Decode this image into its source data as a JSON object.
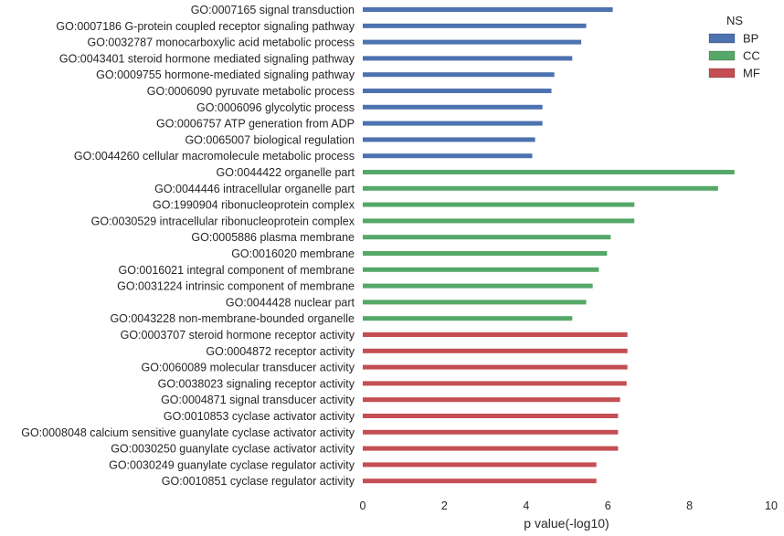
{
  "chart_data": {
    "type": "bar",
    "orientation": "horizontal",
    "xlabel": "p value(-log10)",
    "xlim": [
      0,
      10
    ],
    "xticks": [
      0,
      2,
      4,
      6,
      8,
      10
    ],
    "grid": false,
    "legend": {
      "title": "NS",
      "placement": "top-right",
      "entries": [
        {
          "name": "BP",
          "color": "#4c72b0"
        },
        {
          "name": "CC",
          "color": "#55a868"
        },
        {
          "name": "MF",
          "color": "#c44e52"
        }
      ]
    },
    "bars": [
      {
        "label": "GO:0007165 signal transduction",
        "value": 6.12,
        "group": "BP"
      },
      {
        "label": "GO:0007186 G-protein coupled receptor signaling pathway",
        "value": 5.47,
        "group": "BP"
      },
      {
        "label": "GO:0032787 monocarboxylic acid metabolic process",
        "value": 5.35,
        "group": "BP"
      },
      {
        "label": "GO:0043401 steroid hormone mediated signaling pathway",
        "value": 5.13,
        "group": "BP"
      },
      {
        "label": "GO:0009755 hormone-mediated signaling pathway",
        "value": 4.69,
        "group": "BP"
      },
      {
        "label": "GO:0006090 pyruvate metabolic process",
        "value": 4.62,
        "group": "BP"
      },
      {
        "label": "GO:0006096 glycolytic process",
        "value": 4.4,
        "group": "BP"
      },
      {
        "label": "GO:0006757 ATP generation from ADP",
        "value": 4.4,
        "group": "BP"
      },
      {
        "label": "GO:0065007 biological regulation",
        "value": 4.22,
        "group": "BP"
      },
      {
        "label": "GO:0044260 cellular macromolecule metabolic process",
        "value": 4.15,
        "group": "BP"
      },
      {
        "label": "GO:0044422 organelle part",
        "value": 9.1,
        "group": "CC"
      },
      {
        "label": "GO:0044446 intracellular organelle part",
        "value": 8.7,
        "group": "CC"
      },
      {
        "label": "GO:1990904 ribonucleoprotein complex",
        "value": 6.65,
        "group": "CC"
      },
      {
        "label": "GO:0030529 intracellular ribonucleoprotein complex",
        "value": 6.65,
        "group": "CC"
      },
      {
        "label": "GO:0005886 plasma membrane",
        "value": 6.07,
        "group": "CC"
      },
      {
        "label": "GO:0016020 membrane",
        "value": 5.98,
        "group": "CC"
      },
      {
        "label": "GO:0016021 integral component of membrane",
        "value": 5.78,
        "group": "CC"
      },
      {
        "label": "GO:0031224 intrinsic component of membrane",
        "value": 5.63,
        "group": "CC"
      },
      {
        "label": "GO:0044428 nuclear part",
        "value": 5.47,
        "group": "CC"
      },
      {
        "label": "GO:0043228 non-membrane-bounded organelle",
        "value": 5.13,
        "group": "CC"
      },
      {
        "label": "GO:0003707 steroid hormone receptor activity",
        "value": 6.48,
        "group": "MF"
      },
      {
        "label": "GO:0004872 receptor activity",
        "value": 6.48,
        "group": "MF"
      },
      {
        "label": "GO:0060089 molecular transducer activity",
        "value": 6.48,
        "group": "MF"
      },
      {
        "label": "GO:0038023 signaling receptor activity",
        "value": 6.46,
        "group": "MF"
      },
      {
        "label": "GO:0004871 signal transducer activity",
        "value": 6.3,
        "group": "MF"
      },
      {
        "label": "GO:0010853 cyclase activator activity",
        "value": 6.25,
        "group": "MF"
      },
      {
        "label": "GO:0008048 calcium sensitive guanylate cyclase activator activity",
        "value": 6.25,
        "group": "MF"
      },
      {
        "label": "GO:0030250 guanylate cyclase activator activity",
        "value": 6.25,
        "group": "MF"
      },
      {
        "label": "GO:0030249 guanylate cyclase regulator activity",
        "value": 5.72,
        "group": "MF"
      },
      {
        "label": "GO:0010851 cyclase regulator activity",
        "value": 5.72,
        "group": "MF"
      }
    ]
  }
}
